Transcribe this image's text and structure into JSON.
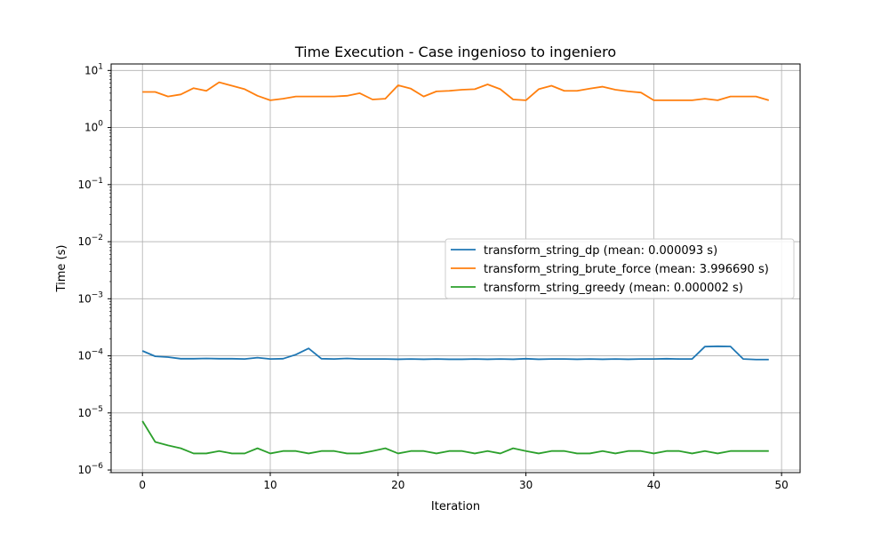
{
  "chart_data": {
    "type": "line",
    "title": "Time Execution - Case ingenioso to ingeniero",
    "xlabel": "Iteration",
    "ylabel": "Time (s)",
    "yscale": "log",
    "xlim": [
      -2.45,
      51.45
    ],
    "ylim": [
      9e-07,
      13.0
    ],
    "xticks": [
      0,
      10,
      20,
      30,
      40,
      50
    ],
    "xtick_labels": [
      "0",
      "10",
      "20",
      "30",
      "40",
      "50"
    ],
    "yticks": [
      {
        "value": 10.0,
        "base": "10",
        "exp": "1"
      },
      {
        "value": 1.0,
        "base": "10",
        "exp": "0"
      },
      {
        "value": 0.1,
        "base": "10",
        "exp": "−1"
      },
      {
        "value": 0.01,
        "base": "10",
        "exp": "−2"
      },
      {
        "value": 0.001,
        "base": "10",
        "exp": "−3"
      },
      {
        "value": 0.0001,
        "base": "10",
        "exp": "−4"
      },
      {
        "value": 1e-05,
        "base": "10",
        "exp": "−5"
      },
      {
        "value": 1e-06,
        "base": "10",
        "exp": "−6"
      }
    ],
    "grid": true,
    "legend_position": "center-right",
    "x": [
      0,
      1,
      2,
      3,
      4,
      5,
      6,
      7,
      8,
      9,
      10,
      11,
      12,
      13,
      14,
      15,
      16,
      17,
      18,
      19,
      20,
      21,
      22,
      23,
      24,
      25,
      26,
      27,
      28,
      29,
      30,
      31,
      32,
      33,
      34,
      35,
      36,
      37,
      38,
      39,
      40,
      41,
      42,
      43,
      44,
      45,
      46,
      47,
      48,
      49
    ],
    "series": [
      {
        "name": "transform_string_dp (mean: 0.000093 s)",
        "color": "#1f77b4",
        "values": [
          0.000122,
          9.8e-05,
          9.5e-05,
          8.9e-05,
          8.9e-05,
          9e-05,
          8.9e-05,
          8.9e-05,
          8.8e-05,
          9.3e-05,
          8.8e-05,
          8.9e-05,
          0.000105,
          0.000135,
          8.9e-05,
          8.8e-05,
          9e-05,
          8.8e-05,
          8.8e-05,
          8.8e-05,
          8.7e-05,
          8.8e-05,
          8.7e-05,
          8.8e-05,
          8.7e-05,
          8.7e-05,
          8.8e-05,
          8.7e-05,
          8.8e-05,
          8.7e-05,
          8.9e-05,
          8.7e-05,
          8.8e-05,
          8.8e-05,
          8.7e-05,
          8.8e-05,
          8.7e-05,
          8.8e-05,
          8.7e-05,
          8.8e-05,
          8.8e-05,
          8.9e-05,
          8.8e-05,
          8.8e-05,
          0.000145,
          0.000147,
          0.000146,
          8.8e-05,
          8.6e-05,
          8.6e-05
        ]
      },
      {
        "name": "transform_string_brute_force (mean: 3.996690 s)",
        "color": "#ff7f0e",
        "values": [
          4.2,
          4.2,
          3.5,
          3.8,
          4.9,
          4.4,
          6.2,
          5.4,
          4.7,
          3.6,
          3.0,
          3.2,
          3.5,
          3.5,
          3.5,
          3.5,
          3.6,
          4.0,
          3.1,
          3.2,
          5.5,
          4.8,
          3.5,
          4.3,
          4.4,
          4.6,
          4.7,
          5.7,
          4.7,
          3.1,
          3.0,
          4.7,
          5.4,
          4.4,
          4.4,
          4.8,
          5.2,
          4.6,
          4.3,
          4.1,
          3.0,
          3.0,
          3.0,
          3.0,
          3.2,
          3.0,
          3.5,
          3.5,
          3.5,
          3.0
        ]
      },
      {
        "name": "transform_string_greedy (mean: 0.000002 s)",
        "color": "#2ca02c",
        "values": [
          7.2e-06,
          3.1e-06,
          2.7e-06,
          2.4e-06,
          1.95e-06,
          1.95e-06,
          2.15e-06,
          1.95e-06,
          1.95e-06,
          2.4e-06,
          1.95e-06,
          2.15e-06,
          2.15e-06,
          1.95e-06,
          2.15e-06,
          2.15e-06,
          1.95e-06,
          1.95e-06,
          2.15e-06,
          2.4e-06,
          1.95e-06,
          2.15e-06,
          2.15e-06,
          1.95e-06,
          2.15e-06,
          2.15e-06,
          1.95e-06,
          2.15e-06,
          1.95e-06,
          2.4e-06,
          2.15e-06,
          1.95e-06,
          2.15e-06,
          2.15e-06,
          1.95e-06,
          1.95e-06,
          2.15e-06,
          1.95e-06,
          2.15e-06,
          2.15e-06,
          1.95e-06,
          2.15e-06,
          2.15e-06,
          1.95e-06,
          2.15e-06,
          1.95e-06,
          2.15e-06,
          2.15e-06,
          2.15e-06,
          2.15e-06
        ]
      }
    ]
  }
}
